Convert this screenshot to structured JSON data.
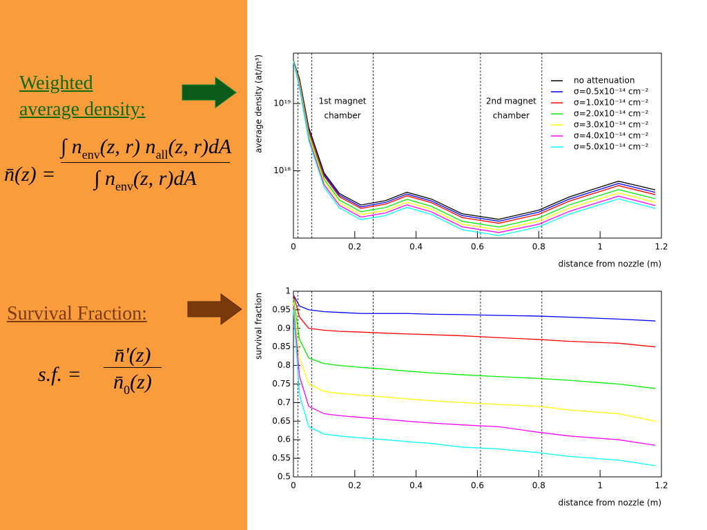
{
  "slide": {
    "heading_1": [
      "Weighted",
      "average density:"
    ],
    "formula_1": {
      "lhs": "n̄(z) =",
      "numerator": [
        "∫ n",
        "env",
        "(z, r) n",
        "all",
        "(z, r)dA"
      ],
      "denominator": [
        "∫ n",
        "env",
        "(z, r)dA"
      ]
    },
    "heading_2": "Survival Fraction:",
    "formula_2": {
      "lhs": "s.f. =",
      "numerator": [
        "n̄'(z)"
      ],
      "denominator": [
        "n̄",
        "0",
        "(z)"
      ]
    }
  },
  "chart_data": [
    {
      "type": "line",
      "ylabel": "average density (at/m³)",
      "xlabel": "distance from nozzle (m)",
      "log_y": true,
      "xlim": [
        0,
        1.2
      ],
      "ylim": [
        1e+17,
        5.6e+19
      ],
      "xticks": [
        0,
        0.2,
        0.4,
        0.6,
        0.8,
        1,
        1.2
      ],
      "yticks": [
        {
          "value": 1e+18,
          "label": "10¹⁸"
        },
        {
          "value": 1e+19,
          "label": "10¹⁹"
        }
      ],
      "vlines": [
        0.015,
        0.06,
        0.26,
        0.61,
        0.81
      ],
      "annotations": [
        [
          "1st magnet",
          "chamber"
        ],
        [
          "2nd magnet",
          "chamber"
        ]
      ],
      "legend": "upper right",
      "x": [
        0,
        0.02,
        0.05,
        0.1,
        0.15,
        0.22,
        0.3,
        0.37,
        0.45,
        0.55,
        0.67,
        0.8,
        0.9,
        1.06,
        1.18
      ],
      "series": [
        {
          "name": "no attenuation",
          "color": "#000000",
          "values": [
            4.4e+19,
            2.3e+19,
            4.4e+18,
            9.3e+17,
            4.6e+17,
            3.1e+17,
            3.6e+17,
            4.8e+17,
            3.8e+17,
            2.3e+17,
            1.9e+17,
            2.6e+17,
            4.1e+17,
            7e+17,
            5.2e+17
          ]
        },
        {
          "name": "σ=0.5x10⁻¹⁴ cm⁻²",
          "color": "#0000ff",
          "values": [
            4.36e+19,
            2.21e+19,
            4.18e+18,
            8.79e+17,
            4.34e+17,
            2.91e+17,
            3.38e+17,
            4.51e+17,
            3.56e+17,
            2.16e+17,
            1.78e+17,
            2.43e+17,
            3.81e+17,
            6.48e+17,
            4.78e+17
          ]
        },
        {
          "name": "σ=1.0x10⁻¹⁴ cm⁻²",
          "color": "#ff0000",
          "values": [
            4.36e+19,
            2.14e+19,
            3.96e+18,
            8.32e+17,
            4.1e+17,
            2.76e+17,
            3.19e+17,
            4.25e+17,
            3.36e+17,
            2.02e+17,
            1.66e+17,
            2.26e+17,
            3.55e+17,
            6.02e+17,
            4.42e+17
          ]
        },
        {
          "name": "σ=2.0x10⁻¹⁴ cm⁻²",
          "color": "#00ee00",
          "values": [
            4.31e+19,
            2e+19,
            3.61e+18,
            7.49e+17,
            3.68e+17,
            2.46e+17,
            2.84e+17,
            3.77e+17,
            2.96e+17,
            1.78e+17,
            1.46e+17,
            1.99e+17,
            3.12e+17,
            5.25e+17,
            3.84e+17
          ]
        },
        {
          "name": "σ=3.0x10⁻¹⁴ cm⁻²",
          "color": "#ffff00",
          "values": [
            4.27e+19,
            1.89e+19,
            3.3e+18,
            6.79e+17,
            3.34e+17,
            2.23e+17,
            2.57e+17,
            3.41e+17,
            2.68e+17,
            1.61e+17,
            1.32e+17,
            1.79e+17,
            2.79e+17,
            4.69e+17,
            3.38e+17
          ]
        },
        {
          "name": "σ=4.0x10⁻¹⁴ cm⁻²",
          "color": "#ff00ff",
          "values": [
            4.22e+19,
            1.77e+19,
            3.04e+18,
            6.23e+17,
            3.06e+17,
            2.05e+17,
            2.36e+17,
            3.12e+17,
            2.45e+17,
            1.47e+17,
            1.21e+17,
            1.61e+17,
            2.5e+17,
            4.2e+17,
            3.04e+17
          ]
        },
        {
          "name": "σ=5.0x10⁻¹⁴ cm⁻²",
          "color": "#00ffff",
          "values": [
            4.18e+19,
            1.66e+19,
            2.79e+18,
            5.72e+17,
            2.81e+17,
            1.88e+17,
            2.16e+17,
            2.86e+17,
            2.24e+17,
            1.33e+17,
            1.09e+17,
            1.47e+17,
            2.28e+17,
            3.82e+17,
            2.76e+17
          ]
        }
      ]
    },
    {
      "type": "line",
      "ylabel": "survival fraction",
      "xlabel": "distance from nozzle (m)",
      "log_y": false,
      "xlim": [
        0,
        1.2
      ],
      "ylim": [
        0.5,
        1
      ],
      "xticks": [
        0,
        0.2,
        0.4,
        0.6,
        0.8,
        1,
        1.2
      ],
      "yticks": [
        0.5,
        0.55,
        0.6,
        0.65,
        0.7,
        0.75,
        0.8,
        0.85,
        0.9,
        0.95,
        1
      ],
      "vlines": [
        0.015,
        0.06,
        0.26,
        0.61,
        0.81
      ],
      "x": [
        0,
        0.02,
        0.05,
        0.1,
        0.15,
        0.22,
        0.3,
        0.37,
        0.45,
        0.55,
        0.67,
        0.8,
        0.9,
        1.06,
        1.18
      ],
      "series": [
        {
          "color": "#0000ff",
          "values": [
            0.99,
            0.96,
            0.95,
            0.945,
            0.943,
            0.94,
            0.94,
            0.94,
            0.938,
            0.937,
            0.935,
            0.933,
            0.93,
            0.925,
            0.92
          ]
        },
        {
          "color": "#ff0000",
          "values": [
            0.99,
            0.93,
            0.9,
            0.895,
            0.892,
            0.89,
            0.887,
            0.885,
            0.883,
            0.88,
            0.875,
            0.87,
            0.865,
            0.86,
            0.85
          ]
        },
        {
          "color": "#00ee00",
          "values": [
            0.98,
            0.87,
            0.82,
            0.805,
            0.8,
            0.795,
            0.79,
            0.785,
            0.78,
            0.775,
            0.77,
            0.765,
            0.76,
            0.75,
            0.738
          ]
        },
        {
          "color": "#ffff00",
          "values": [
            0.97,
            0.82,
            0.75,
            0.73,
            0.725,
            0.72,
            0.715,
            0.71,
            0.705,
            0.7,
            0.695,
            0.69,
            0.68,
            0.67,
            0.65
          ]
        },
        {
          "color": "#ff00ff",
          "values": [
            0.96,
            0.77,
            0.69,
            0.67,
            0.665,
            0.66,
            0.655,
            0.65,
            0.645,
            0.64,
            0.635,
            0.62,
            0.61,
            0.6,
            0.585
          ]
        },
        {
          "color": "#00ffff",
          "values": [
            0.95,
            0.72,
            0.635,
            0.615,
            0.61,
            0.605,
            0.6,
            0.595,
            0.59,
            0.58,
            0.575,
            0.565,
            0.555,
            0.545,
            0.53
          ]
        }
      ]
    }
  ]
}
